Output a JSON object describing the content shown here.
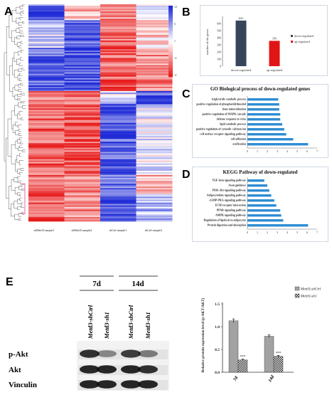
{
  "panels": {
    "a": "A",
    "b": "B",
    "c": "C",
    "d": "D",
    "e": "E"
  },
  "heatmap": {
    "samples": [
      "shMettl3-sample1",
      "shMettl3-sample2",
      "shCtrl-sample1",
      "shCtrl-sample2"
    ],
    "scale_ticks": [
      "12",
      "6",
      "1",
      "-4",
      "-9"
    ]
  },
  "colors": {
    "high": "#1f2bd6",
    "low": "#e81c1c",
    "mid": "#ffffff",
    "bar_dark": "#36455a",
    "bar_red": "#e11515",
    "go_bar": "#2f8dd3"
  },
  "chart_data": [
    {
      "type": "bar",
      "panel": "B",
      "categories": [
        "down-regulated",
        "up-regulated"
      ],
      "values": [
        641,
        356
      ],
      "ylabel": "number of the genes",
      "yticks": [
        0,
        100,
        200,
        300,
        400,
        500,
        600
      ],
      "ylim": [
        0,
        700
      ],
      "legend": [
        "down-regulated",
        "up-regulated"
      ],
      "legend_position": "right",
      "colors": [
        "#36455a",
        "#e11515"
      ]
    },
    {
      "type": "bar",
      "orientation": "horizontal",
      "panel": "C",
      "title": "GO Biological process of down-regulated genes",
      "categories": [
        "triglyceride catabolic process",
        "positive regulation of phosphatidylinositol",
        "bone mineralization",
        "positive regulation of MAPK cascade",
        "defense response to virus",
        "lipid catabolic process",
        "positive regulation of cytosolic calcium ion",
        "cell surface receptor signaling pathway",
        "cell adhesion",
        "ossification"
      ],
      "values": [
        3.1,
        3.2,
        3.2,
        3.3,
        3.3,
        3.5,
        3.7,
        3.9,
        4.6,
        6.1
      ],
      "xticks": [
        0,
        1,
        2,
        3,
        4,
        5,
        6,
        7
      ],
      "xlim": [
        0,
        7
      ]
    },
    {
      "type": "bar",
      "orientation": "horizontal",
      "panel": "D",
      "title": "KEGG Pathway of down-regulated",
      "categories": [
        "TGF-beta signaling pathway",
        "Axon guidance",
        "PI3K-Akt signaling pathway",
        "Adipocytokine signaling pathway",
        "cGMP-PKG signaling pathway",
        "ECM-receptor interaction",
        "PPAR signaling pathway",
        "AMPK signaling pathway",
        "Regulation of lipolysis in adipocytes",
        "Protein digestion and absorption"
      ],
      "values": [
        1.7,
        2.0,
        2.2,
        2.4,
        2.7,
        2.9,
        3.3,
        3.4,
        3.6,
        6.1
      ],
      "xticks": [
        0,
        1,
        2,
        3,
        4,
        5,
        6,
        7
      ],
      "xlim": [
        0,
        7
      ]
    },
    {
      "type": "bar",
      "panel": "E",
      "categories": [
        "7d",
        "14d"
      ],
      "series": [
        {
          "name": "Mettl3-shCtrl",
          "values": [
            1.13,
            0.79
          ],
          "errors": [
            0.04,
            0.03
          ]
        },
        {
          "name": "Mettl3-sh1",
          "values": [
            0.27,
            0.35
          ],
          "errors": [
            0.02,
            0.02
          ]
        }
      ],
      "significance": [
        "***",
        "***"
      ],
      "ylabel": "Relative protein expression level (p-AKT/AKT)",
      "yticks": [
        "0.0",
        "0.5",
        "1.0",
        "1.5"
      ],
      "ylim": [
        0,
        1.5
      ]
    }
  ],
  "blot": {
    "timepoints": [
      "7d",
      "14d"
    ],
    "lanes": [
      "Mettl3-shCtrl",
      "Mettl3-sh1",
      "Mettl3-shCtrl",
      "Mettl3-sh1"
    ],
    "rows": [
      "p-Akt",
      "Akt",
      "Vinculin"
    ],
    "intensities": {
      "p-Akt": [
        0.85,
        0.45,
        0.8,
        0.5
      ],
      "Akt": [
        0.9,
        0.9,
        0.9,
        0.85
      ],
      "Vinculin": [
        0.9,
        0.9,
        0.9,
        0.9
      ]
    }
  }
}
